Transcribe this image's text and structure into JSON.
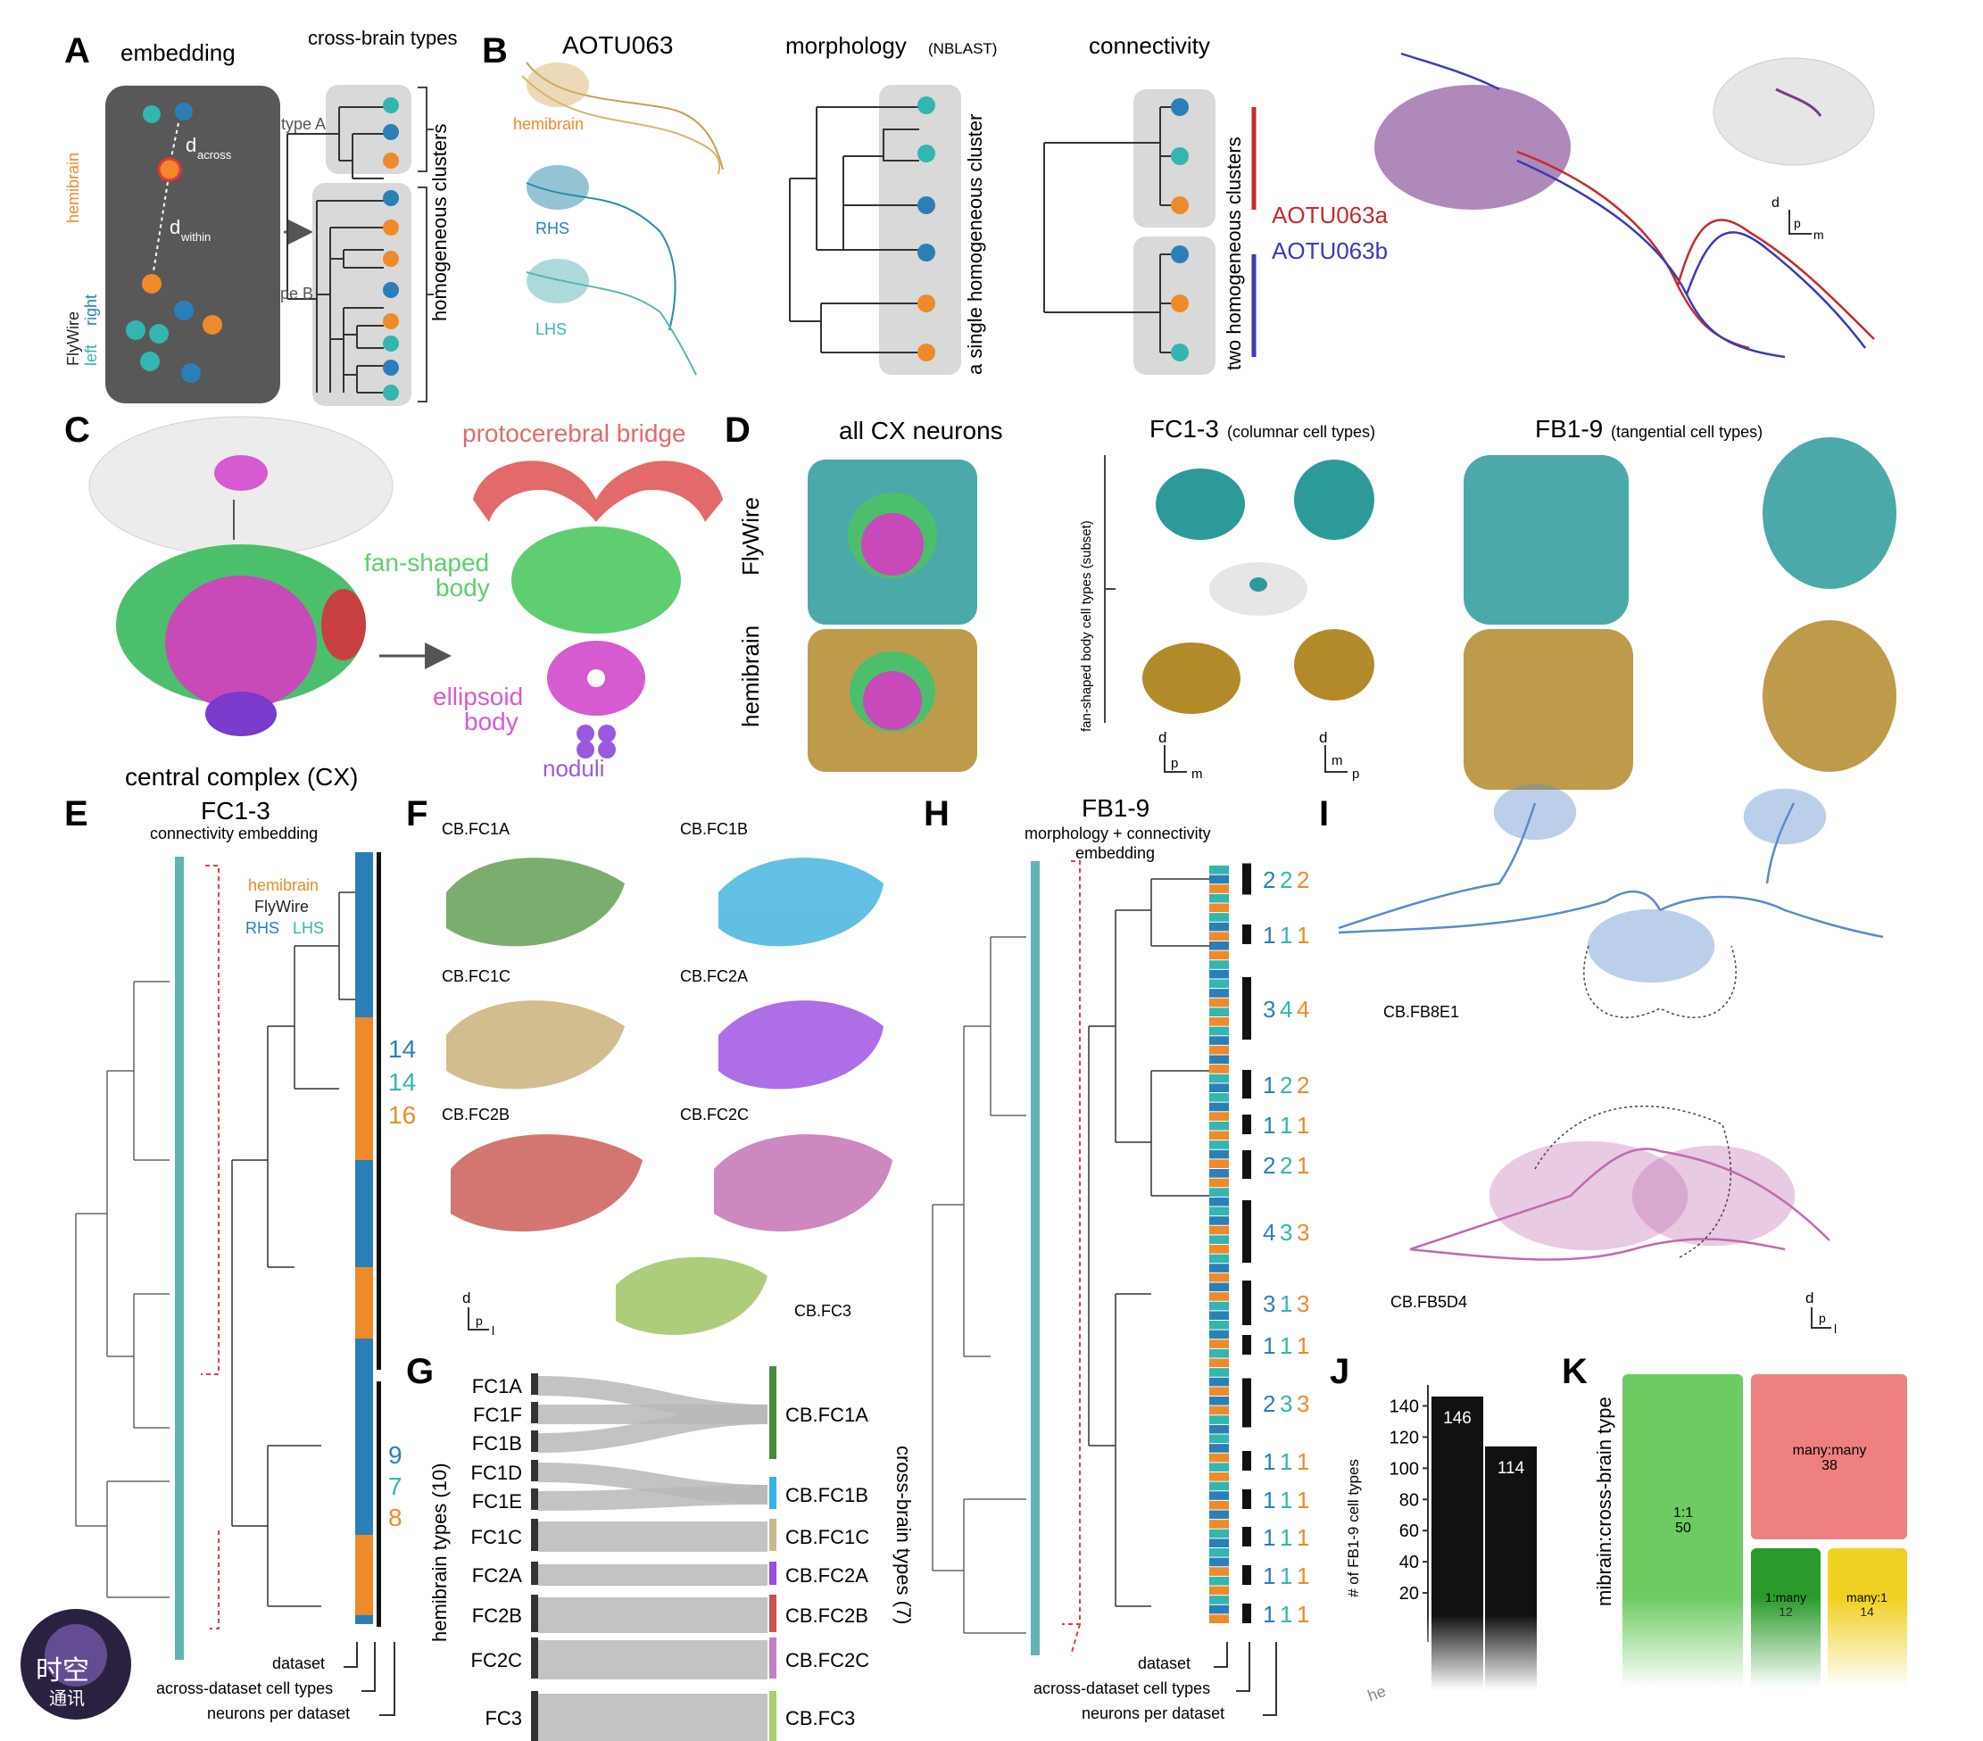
{
  "colors": {
    "hemibrain": "#ee8a2a",
    "flywire_right": "#2a7fb8",
    "flywire_left": "#33b5b0",
    "aotu_a": "#c42b2b",
    "aotu_b": "#3a3ab8",
    "pb": "#e36a6a",
    "fb": "#5fce70",
    "eb": "#d65ad0",
    "noduli": "#9a5ae0",
    "fw_teal": "#2d9a9a",
    "hb_gold": "#b38a2a"
  },
  "panels": {
    "A": {
      "label": "A",
      "embedding_title": "embedding",
      "crossbrain_title": "cross-brain types",
      "hemibrain_label": "hemibrain",
      "flywire_label": "FlyWire",
      "left_label": "left",
      "right_label": "right",
      "d_across": "d",
      "d_across_sub": "across",
      "d_within": "d",
      "d_within_sub": "within",
      "typeA": "type A",
      "typeB": "type B",
      "clusters_label": "homogeneous clusters"
    },
    "B": {
      "label": "B",
      "neuron_title": "AOTU063",
      "hemibrain": "hemibrain",
      "rhs": "RHS",
      "lhs": "LHS",
      "morph_title": "morphology",
      "morph_sub": "(NBLAST)",
      "conn_title": "connectivity",
      "single_cluster": "a single homogeneous cluster",
      "two_clusters": "two homogeneous clusters",
      "aotu_a": "AOTU063a",
      "aotu_b": "AOTU063b",
      "axis_d": "d",
      "axis_p": "p",
      "axis_m": "m"
    },
    "C": {
      "label": "C",
      "pb": "protocerebral bridge",
      "fb1": "fan-shaped",
      "fb2": "body",
      "eb1": "ellipsoid",
      "eb2": "body",
      "noduli": "noduli",
      "cx": "central complex (CX)"
    },
    "D": {
      "label": "D",
      "all_cx": "all CX neurons",
      "fc_title": "FC1-3",
      "fc_sub": "(columnar cell types)",
      "fb_title": "FB1-9",
      "fb_sub": "(tangential cell types)",
      "flywire": "FlyWire",
      "hemibrain": "hemibrain",
      "subset": "fan-shaped body cell types (subset)",
      "axis1_d": "d",
      "axis1_p": "p",
      "axis1_m": "m",
      "axis2_d": "d",
      "axis2_m": "m",
      "axis2_p": "p"
    },
    "E": {
      "label": "E",
      "title": "FC1-3",
      "subtitle": "connectivity embedding",
      "legend_hemibrain": "hemibrain",
      "legend_flywire": "FlyWire",
      "legend_rhs": "RHS",
      "legend_lhs": "LHS",
      "counts_top": [
        "14",
        "14",
        "16"
      ],
      "counts_bottom": [
        "9",
        "7",
        "8"
      ],
      "dataset": "dataset",
      "across": "across-dataset cell types",
      "per": "neurons per dataset"
    },
    "F": {
      "label": "F",
      "types": [
        "CB.FC1A",
        "CB.FC1B",
        "CB.FC1C",
        "CB.FC2A",
        "CB.FC2B",
        "CB.FC2C",
        "CB.FC3"
      ],
      "type_colors": [
        "#5a9a4a",
        "#3ab0dd",
        "#c8ad72",
        "#9a4ae0",
        "#c8524e",
        "#c06ab0",
        "#9ac05a"
      ],
      "axis_d": "d",
      "axis_p": "p",
      "axis_l": "l"
    },
    "G": {
      "label": "G",
      "left_types": [
        "FC1A",
        "FC1F",
        "FC1B",
        "FC1D",
        "FC1E",
        "FC1C",
        "FC2A",
        "FC2B",
        "FC2C",
        "FC3"
      ],
      "right_types": [
        "CB.FC1A",
        "CB.FC1B",
        "CB.FC1C",
        "CB.FC2A",
        "CB.FC2B",
        "CB.FC2C",
        "CB.FC3"
      ],
      "right_colors": [
        "#4a8a3a",
        "#3ab0e8",
        "#c8b890",
        "#9a4ae0",
        "#c8524e",
        "#c080c0",
        "#a8d070"
      ],
      "left_axis": "hemibrain types (10)",
      "right_axis": "cross-brain types (7)"
    },
    "H": {
      "label": "H",
      "title": "FB1-9",
      "subtitle1": "morphology + connectivity",
      "subtitle2": "embedding",
      "counts": [
        [
          "2",
          "2",
          "2"
        ],
        [
          "1",
          "1",
          "1"
        ],
        [
          "3",
          "4",
          "4"
        ],
        [
          "1",
          "2",
          "2"
        ],
        [
          "1",
          "1",
          "1"
        ],
        [
          "2",
          "2",
          "1"
        ],
        [
          "4",
          "3",
          "3"
        ],
        [
          "3",
          "1",
          "3"
        ],
        [
          "1",
          "1",
          "1"
        ],
        [
          "2",
          "3",
          "3"
        ],
        [
          "1",
          "1",
          "1"
        ],
        [
          "1",
          "1",
          "1"
        ],
        [
          "1",
          "1",
          "1"
        ],
        [
          "1",
          "1",
          "1"
        ],
        [
          "1",
          "1",
          "1"
        ]
      ],
      "dataset": "dataset",
      "across": "across-dataset cell types",
      "per": "neurons per dataset"
    },
    "I": {
      "label": "I",
      "type1": "CB.FB8E1",
      "type2": "CB.FB5D4",
      "axis_d": "d",
      "axis_p": "p",
      "axis_l": "l"
    },
    "J": {
      "label": "J",
      "ylabel": "# of FB1-9 cell types",
      "yticks": [
        "20",
        "40",
        "60",
        "80",
        "100",
        "120",
        "140"
      ],
      "xlabel_fragment": "he"
    },
    "K": {
      "label": "K",
      "ylabel_fragment": "mibrain:cross-brain type",
      "boxes": [
        {
          "label": "1:1",
          "value": "50",
          "color": "#6ccc62"
        },
        {
          "label": "many:many",
          "value": "38",
          "color": "#ee8080"
        },
        {
          "label": "1:many",
          "value": "12",
          "color": "#2a9a2a"
        },
        {
          "label": "many:1",
          "value": "14",
          "color": "#f0d020"
        }
      ]
    }
  },
  "chart_data": {
    "type": "bar",
    "categories": [
      "",
      ""
    ],
    "values": [
      146,
      114
    ],
    "ylabel": "# of FB1-9 cell types",
    "ylim": [
      0,
      150
    ]
  },
  "watermark": {
    "line1": "时空",
    "line2": "通讯"
  }
}
